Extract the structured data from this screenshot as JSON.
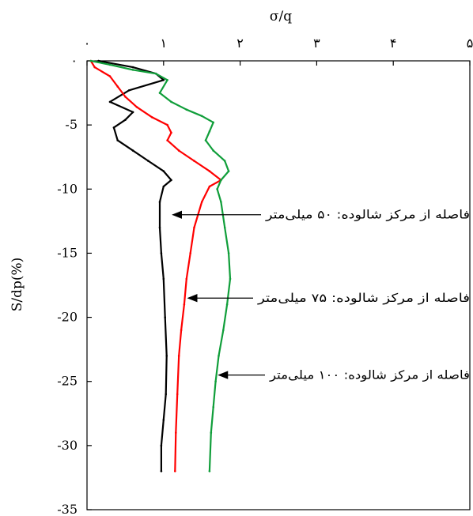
{
  "chart_data": {
    "type": "line",
    "xlabel": "σ/q",
    "ylabel": "S/dp(%)",
    "xlim": [
      0,
      5
    ],
    "ylim": [
      -35,
      0
    ],
    "x_ticks": [
      0,
      1,
      2,
      3,
      4,
      5
    ],
    "x_tick_labels": [
      "٠",
      "١",
      "٢",
      "٣",
      "۴",
      "۵"
    ],
    "y_ticks": [
      0,
      -5,
      -10,
      -15,
      -20,
      -25,
      -30,
      -35
    ],
    "y_tick_labels": [
      "٠",
      "-5",
      "-10",
      "-15",
      "-20",
      "-25",
      "-30",
      "-35"
    ],
    "x_axis_position": "top",
    "grid": false,
    "series": [
      {
        "color": "#000000",
        "points": [
          [
            0.15,
            0
          ],
          [
            0.6,
            -0.5
          ],
          [
            0.9,
            -1.0
          ],
          [
            1.0,
            -1.5
          ],
          [
            0.55,
            -2.3
          ],
          [
            0.3,
            -3.2
          ],
          [
            0.6,
            -4.0
          ],
          [
            0.5,
            -4.6
          ],
          [
            0.35,
            -5.2
          ],
          [
            0.4,
            -6.2
          ],
          [
            0.6,
            -7.0
          ],
          [
            0.8,
            -7.8
          ],
          [
            1.0,
            -8.6
          ],
          [
            1.1,
            -9.3
          ],
          [
            1.0,
            -9.8
          ],
          [
            0.95,
            -11
          ],
          [
            0.95,
            -13
          ],
          [
            0.97,
            -15
          ],
          [
            1.0,
            -17
          ],
          [
            1.02,
            -20
          ],
          [
            1.04,
            -23
          ],
          [
            1.03,
            -26
          ],
          [
            1.0,
            -28
          ],
          [
            0.97,
            -30
          ],
          [
            0.97,
            -32
          ]
        ]
      },
      {
        "color": "#ff0000",
        "points": [
          [
            0.05,
            0
          ],
          [
            0.1,
            -0.5
          ],
          [
            0.3,
            -1.2
          ],
          [
            0.4,
            -2.0
          ],
          [
            0.5,
            -2.8
          ],
          [
            0.65,
            -3.6
          ],
          [
            0.85,
            -4.4
          ],
          [
            1.05,
            -5.0
          ],
          [
            1.1,
            -5.6
          ],
          [
            1.05,
            -6.2
          ],
          [
            1.2,
            -7.0
          ],
          [
            1.4,
            -7.8
          ],
          [
            1.6,
            -8.6
          ],
          [
            1.75,
            -9.3
          ],
          [
            1.6,
            -9.8
          ],
          [
            1.5,
            -11
          ],
          [
            1.4,
            -13
          ],
          [
            1.35,
            -15
          ],
          [
            1.3,
            -17
          ],
          [
            1.27,
            -19
          ],
          [
            1.23,
            -21
          ],
          [
            1.2,
            -23
          ],
          [
            1.18,
            -26
          ],
          [
            1.16,
            -29
          ],
          [
            1.15,
            -32
          ]
        ]
      },
      {
        "color": "#109e3a",
        "points": [
          [
            0.05,
            0
          ],
          [
            0.3,
            -0.3
          ],
          [
            0.6,
            -0.7
          ],
          [
            0.9,
            -1.0
          ],
          [
            1.05,
            -1.5
          ],
          [
            0.95,
            -2.5
          ],
          [
            1.1,
            -3.2
          ],
          [
            1.3,
            -3.8
          ],
          [
            1.5,
            -4.3
          ],
          [
            1.65,
            -4.8
          ],
          [
            1.6,
            -5.5
          ],
          [
            1.55,
            -6.2
          ],
          [
            1.65,
            -7.0
          ],
          [
            1.8,
            -7.8
          ],
          [
            1.85,
            -8.6
          ],
          [
            1.75,
            -9.3
          ],
          [
            1.7,
            -10
          ],
          [
            1.75,
            -11
          ],
          [
            1.8,
            -13
          ],
          [
            1.85,
            -15
          ],
          [
            1.87,
            -17
          ],
          [
            1.83,
            -19
          ],
          [
            1.78,
            -21
          ],
          [
            1.72,
            -23
          ],
          [
            1.68,
            -25
          ],
          [
            1.65,
            -27
          ],
          [
            1.62,
            -29
          ],
          [
            1.6,
            -32
          ]
        ]
      }
    ],
    "annotations": [
      {
        "text": "فاصله از مرکز شالوده: ۵٠ میلی‌متر",
        "arrow_to": [
          1.1,
          -12
        ]
      },
      {
        "text": "فاصله از مرکز شالوده: ٧۵ میلی‌متر",
        "arrow_to": [
          1.3,
          -18.5
        ]
      },
      {
        "text": "فاصله از مرکز شالوده: ١٠٠ میلی‌متر",
        "arrow_to": [
          1.7,
          -24.5
        ]
      }
    ]
  }
}
